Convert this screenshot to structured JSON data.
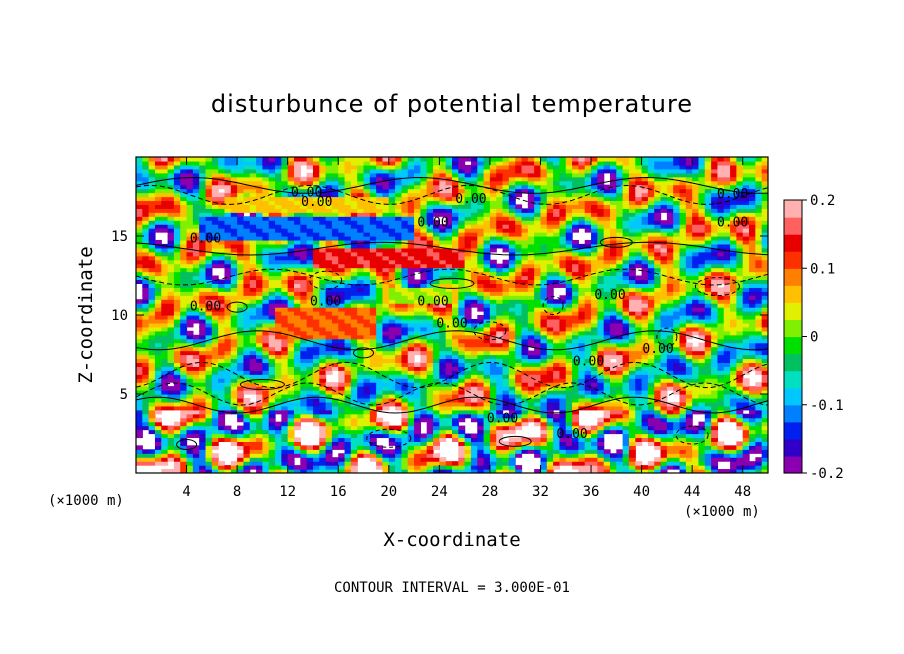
{
  "chart_data": {
    "type": "heatmap",
    "title": "disturbunce of potential temperature",
    "xlabel": "X-coordinate",
    "ylabel": "Z-coordinate",
    "x_unit": "(×1000 m)",
    "y_unit": "(×1000 m)",
    "x_ticks": [
      "4",
      "8",
      "12",
      "16",
      "20",
      "24",
      "28",
      "32",
      "36",
      "40",
      "44",
      "48"
    ],
    "x_tick_values": [
      4,
      8,
      12,
      16,
      20,
      24,
      28,
      32,
      36,
      40,
      44,
      48
    ],
    "y_ticks": [
      "5",
      "10",
      "15"
    ],
    "y_tick_values": [
      5,
      10,
      15
    ],
    "xlim": [
      0,
      50
    ],
    "ylim": [
      0,
      20
    ],
    "colorbar": {
      "ticks": [
        "0.2",
        "0.1",
        "0",
        "-0.1",
        "-0.2"
      ],
      "tick_values": [
        0.2,
        0.1,
        0,
        -0.1,
        -0.2
      ],
      "range": [
        -0.2,
        0.2
      ],
      "colors": [
        "#8a00b0",
        "#3000c8",
        "#0020f0",
        "#0080ff",
        "#00c8ff",
        "#00e0c0",
        "#00c060",
        "#00e000",
        "#80f000",
        "#e0f000",
        "#ffc000",
        "#ff8000",
        "#ff3000",
        "#e80000",
        "#ff6060",
        "#ffb0b0"
      ]
    },
    "contour_interval_text": "CONTOUR INTERVAL = 3.000E-01",
    "contour_labels": [
      "0.00",
      "0.00",
      "0.00",
      "0.00",
      "0.00",
      "0.00",
      "0.00",
      "0.00",
      "0.00",
      "0.00",
      "0.00",
      "0.00",
      "0.00",
      "0.00",
      "0.00",
      "0.00"
    ],
    "bands": [
      {
        "z": 17.0,
        "x0": 7,
        "x1": 20,
        "h": 1.0,
        "v": 0.06
      },
      {
        "z": 15.5,
        "x0": 5,
        "x1": 22,
        "h": 1.4,
        "v": -0.12
      },
      {
        "z": 13.6,
        "x0": 14,
        "x1": 26,
        "h": 1.2,
        "v": 0.14
      },
      {
        "z": 9.6,
        "x0": 11,
        "x1": 19,
        "h": 2.0,
        "v": 0.1
      },
      {
        "z": 11.2,
        "x0": 20,
        "x1": 25,
        "h": 1.0,
        "v": 0.02
      }
    ]
  }
}
